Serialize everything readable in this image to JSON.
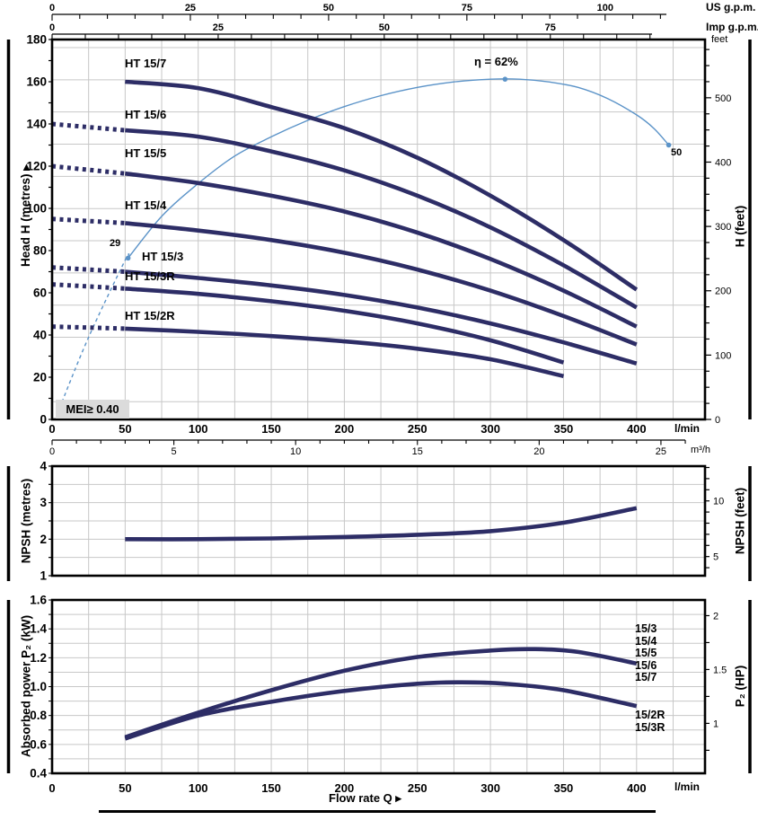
{
  "colors": {
    "curve_navy": "#2d2d66",
    "efficiency_blue": "#5b93c8",
    "grid_gray": "#c7c7c7",
    "border_black": "#000000",
    "mei_bg": "#dbdbdb"
  },
  "labels": {
    "us_gpm_unit": "US g.p.m.",
    "imp_gpm_unit": "Imp g.p.m.",
    "feet_unit": "feet",
    "lmin_unit_top": "l/min",
    "m3h_unit": "m³/h",
    "lmin_unit_bottom": "l/min",
    "flow_rate_title": "Flow rate Q",
    "flow_rate_arrow": "▸",
    "head_axis_title": "Head H (metres)",
    "head_axis_arrow": "▸",
    "hfeet_axis_title": "H (feet)",
    "npsh_left_title": "NPSH (metres)",
    "npsh_right_title": "NPSH (feet)",
    "power_left_title": "Absorbed power P₂ (kW)",
    "power_right_title": "P₂ (HP)"
  },
  "chart_data": [
    {
      "id": "head",
      "type": "line",
      "xlabel": "l/min",
      "x2label": "m³/h",
      "ylabel": "Head H (metres)",
      "y2label": "H (feet)",
      "xlim_lmin": [
        0,
        447
      ],
      "ylim_m": [
        0,
        180
      ],
      "x_ticks_lmin": [
        0,
        50,
        100,
        150,
        200,
        250,
        300,
        350,
        400
      ],
      "x_ticks_m3h": [
        0,
        5,
        10,
        15,
        20,
        25
      ],
      "us_gpm_ticks": [
        0,
        25,
        50,
        75,
        100
      ],
      "imp_gpm_ticks": [
        0,
        25,
        50,
        75
      ],
      "y_ticks_m": [
        0,
        20,
        40,
        60,
        80,
        100,
        120,
        140,
        160,
        180
      ],
      "y_ticks_ft": [
        0,
        100,
        200,
        300,
        400,
        500
      ],
      "grid": "on",
      "curves": [
        {
          "label": "HT 15/7",
          "dotted": null,
          "points": [
            [
              50,
              160
            ],
            [
              100,
              157
            ],
            [
              150,
              148
            ],
            [
              200,
              138
            ],
            [
              250,
              124
            ],
            [
              300,
              106
            ],
            [
              350,
              85
            ],
            [
              400,
              61.5
            ]
          ]
        },
        {
          "label": "HT 15/6",
          "dotted": [
            [
              0,
              140
            ],
            [
              50,
              137
            ]
          ],
          "points": [
            [
              50,
              137
            ],
            [
              100,
              134
            ],
            [
              150,
              127
            ],
            [
              200,
              118
            ],
            [
              250,
              106
            ],
            [
              300,
              91
            ],
            [
              350,
              73
            ],
            [
              400,
              53
            ]
          ]
        },
        {
          "label": "HT 15/5",
          "dotted": [
            [
              0,
              120
            ],
            [
              50,
              116.5
            ]
          ],
          "points": [
            [
              50,
              116.5
            ],
            [
              100,
              112
            ],
            [
              150,
              106
            ],
            [
              200,
              98.5
            ],
            [
              250,
              88.5
            ],
            [
              300,
              76
            ],
            [
              350,
              61
            ],
            [
              400,
              44
            ]
          ]
        },
        {
          "label": "HT 15/4",
          "dotted": [
            [
              0,
              95
            ],
            [
              50,
              93
            ]
          ],
          "points": [
            [
              50,
              93
            ],
            [
              100,
              89.5
            ],
            [
              150,
              85
            ],
            [
              200,
              79
            ],
            [
              250,
              71
            ],
            [
              300,
              61
            ],
            [
              350,
              49
            ],
            [
              400,
              35.5
            ]
          ]
        },
        {
          "label": "HT 15/3",
          "dotted": [
            [
              0,
              72
            ],
            [
              50,
              70
            ]
          ],
          "points": [
            [
              50,
              70
            ],
            [
              100,
              67
            ],
            [
              150,
              63.5
            ],
            [
              200,
              59
            ],
            [
              250,
              53
            ],
            [
              300,
              45.5
            ],
            [
              350,
              36.5
            ],
            [
              400,
              26.5
            ]
          ]
        },
        {
          "label": "HT 15/3R",
          "dotted": [
            [
              0,
              64
            ],
            [
              50,
              62
            ]
          ],
          "points": [
            [
              50,
              62
            ],
            [
              100,
              59.5
            ],
            [
              150,
              56
            ],
            [
              200,
              51.5
            ],
            [
              250,
              45.5
            ],
            [
              300,
              37.5
            ],
            [
              350,
              27
            ]
          ]
        },
        {
          "label": "HT 15/2R",
          "dotted": [
            [
              0,
              44
            ],
            [
              50,
              43
            ]
          ],
          "points": [
            [
              50,
              43
            ],
            [
              100,
              41.5
            ],
            [
              150,
              39.5
            ],
            [
              200,
              37
            ],
            [
              250,
              33.5
            ],
            [
              300,
              28.5
            ],
            [
              350,
              20.5
            ]
          ]
        }
      ],
      "efficiency": {
        "peak_label": "η = 62%",
        "dashed_points_q_eta": [
          [
            5,
            2
          ],
          [
            25,
            15
          ],
          [
            50,
            29
          ],
          [
            52,
            29.4
          ]
        ],
        "solid_points_q_eta": [
          [
            52,
            29.4
          ],
          [
            75,
            37
          ],
          [
            100,
            43
          ],
          [
            125,
            48
          ],
          [
            150,
            51.5
          ],
          [
            175,
            54.5
          ],
          [
            200,
            57
          ],
          [
            225,
            59
          ],
          [
            250,
            60.5
          ],
          [
            275,
            61.5
          ],
          [
            300,
            62
          ],
          [
            320,
            62
          ],
          [
            340,
            61.5
          ],
          [
            360,
            60.5
          ],
          [
            380,
            58.5
          ],
          [
            400,
            55.5
          ],
          [
            412,
            53
          ],
          [
            422,
            50
          ]
        ],
        "marker_start": {
          "q": 52,
          "eta": 29.4,
          "label": "29"
        },
        "marker_peak": {
          "q": 310,
          "eta": 62
        },
        "marker_end": {
          "q": 422,
          "eta": 50,
          "label": "50"
        }
      },
      "mei_label": "MEI≥ 0.40"
    },
    {
      "id": "npsh",
      "type": "line",
      "ylabel": "NPSH (metres)",
      "y2label": "NPSH (feet)",
      "ylim_m": [
        1,
        4
      ],
      "y_ticks_m": [
        1,
        2,
        3,
        4
      ],
      "y2_ticks_ft": [
        5,
        10
      ],
      "grid": "on",
      "points": [
        [
          50,
          2
        ],
        [
          100,
          2
        ],
        [
          150,
          2.02
        ],
        [
          200,
          2.06
        ],
        [
          250,
          2.12
        ],
        [
          300,
          2.22
        ],
        [
          350,
          2.45
        ],
        [
          400,
          2.85
        ]
      ]
    },
    {
      "id": "power",
      "type": "line",
      "ylabel": "Absorbed power P₂ (kW)",
      "y2label": "P₂ (HP)",
      "xlabel": "l/min",
      "x_axis_title": "Flow rate Q",
      "ylim_kw": [
        0.4,
        1.6
      ],
      "y_ticks_kw": [
        "0.4",
        "0.6",
        "0.8",
        "1.0",
        "1.2",
        "1.4",
        "1.6"
      ],
      "y2_ticks_hp": [
        "1",
        "1.5",
        "2"
      ],
      "x_ticks_lmin": [
        0,
        50,
        100,
        150,
        200,
        250,
        300,
        350,
        400
      ],
      "grid": "on",
      "group1_labels": [
        "15/3",
        "15/4",
        "15/5",
        "15/6",
        "15/7"
      ],
      "group2_labels": [
        "15/2R",
        "15/3R"
      ],
      "series": [
        {
          "name": "15/3 15/4 15/5 15/6 15/7",
          "points": [
            [
              50,
              0.65
            ],
            [
              100,
              0.82
            ],
            [
              150,
              0.975
            ],
            [
              200,
              1.11
            ],
            [
              250,
              1.205
            ],
            [
              300,
              1.25
            ],
            [
              330,
              1.26
            ],
            [
              360,
              1.24
            ],
            [
              400,
              1.16
            ]
          ]
        },
        {
          "name": "15/2R 15/3R",
          "points": [
            [
              50,
              0.64
            ],
            [
              100,
              0.8
            ],
            [
              150,
              0.895
            ],
            [
              200,
              0.97
            ],
            [
              250,
              1.02
            ],
            [
              280,
              1.03
            ],
            [
              310,
              1.02
            ],
            [
              350,
              0.975
            ],
            [
              400,
              0.865
            ]
          ]
        }
      ]
    }
  ]
}
